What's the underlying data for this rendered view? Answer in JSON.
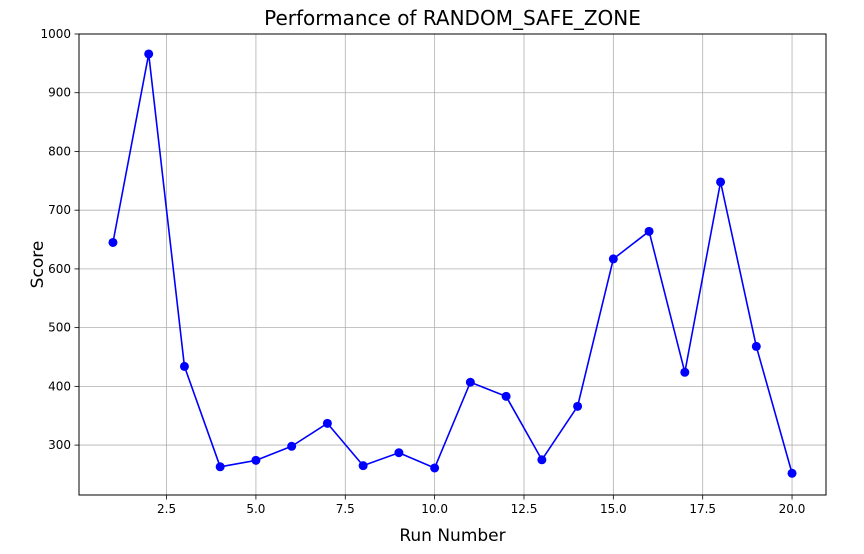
{
  "chart_data": {
    "type": "line",
    "title": "Performance of RANDOM_SAFE_ZONE",
    "xlabel": "Run Number",
    "ylabel": "Score",
    "xlim": [
      0.05,
      20.95
    ],
    "ylim": [
      215,
      1000
    ],
    "xticks": [
      2.5,
      5.0,
      7.5,
      10.0,
      12.5,
      15.0,
      17.5,
      20.0
    ],
    "xtick_labels": [
      "2.5",
      "5.0",
      "7.5",
      "10.0",
      "12.5",
      "15.0",
      "17.5",
      "20.0"
    ],
    "yticks": [
      300,
      400,
      500,
      600,
      700,
      800,
      900,
      1000
    ],
    "ytick_labels": [
      "300",
      "400",
      "500",
      "600",
      "700",
      "800",
      "900",
      "1000"
    ],
    "grid": true,
    "series": [
      {
        "color": "#0000ff",
        "marker": "circle",
        "x": [
          1,
          2,
          3,
          4,
          5,
          6,
          7,
          8,
          9,
          10,
          11,
          12,
          13,
          14,
          15,
          16,
          17,
          18,
          19,
          20
        ],
        "y": [
          645,
          966,
          434,
          263,
          274,
          298,
          337,
          265,
          287,
          261,
          407,
          383,
          275,
          366,
          617,
          664,
          424,
          748,
          468,
          252
        ]
      }
    ]
  }
}
